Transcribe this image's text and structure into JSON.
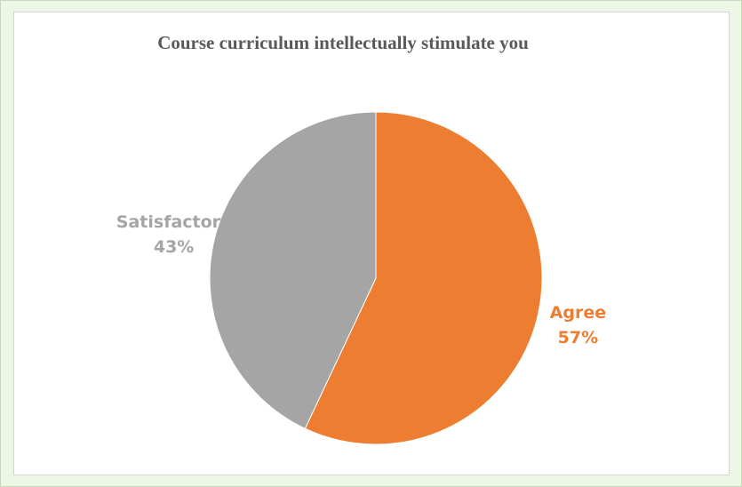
{
  "chart_data": {
    "type": "pie",
    "title": "Course curriculum intellectually stimulate you",
    "slices": [
      {
        "label": "Agree",
        "value": 57,
        "display": "57%",
        "color": "#ed7d31"
      },
      {
        "label": "Satisfactory",
        "value": 43,
        "display": "43%",
        "color": "#a5a5a5"
      }
    ],
    "start_angle_deg": 0,
    "direction": "clockwise",
    "legend": "none",
    "data_labels": "outside"
  }
}
